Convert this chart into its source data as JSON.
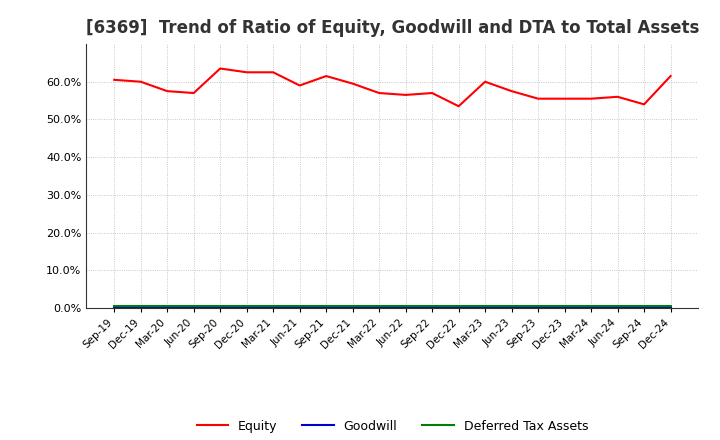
{
  "title": "[6369]  Trend of Ratio of Equity, Goodwill and DTA to Total Assets",
  "x_labels": [
    "Sep-19",
    "Dec-19",
    "Mar-20",
    "Jun-20",
    "Sep-20",
    "Dec-20",
    "Mar-21",
    "Jun-21",
    "Sep-21",
    "Dec-21",
    "Mar-22",
    "Jun-22",
    "Sep-22",
    "Dec-22",
    "Mar-23",
    "Jun-23",
    "Sep-23",
    "Dec-23",
    "Mar-24",
    "Jun-24",
    "Sep-24",
    "Dec-24"
  ],
  "equity": [
    60.5,
    60.0,
    57.5,
    57.0,
    63.5,
    62.5,
    62.5,
    59.0,
    61.5,
    59.5,
    57.0,
    56.5,
    57.0,
    53.5,
    60.0,
    57.5,
    55.5,
    55.5,
    55.5,
    56.0,
    54.0,
    61.5
  ],
  "goodwill": [
    0.0,
    0.0,
    0.0,
    0.0,
    0.0,
    0.0,
    0.0,
    0.0,
    0.0,
    0.0,
    0.0,
    0.0,
    0.0,
    0.0,
    0.0,
    0.0,
    0.0,
    0.0,
    0.0,
    0.0,
    0.0,
    0.0
  ],
  "dta": [
    0.5,
    0.5,
    0.5,
    0.5,
    0.5,
    0.5,
    0.5,
    0.5,
    0.5,
    0.5,
    0.5,
    0.5,
    0.5,
    0.5,
    0.5,
    0.5,
    0.5,
    0.5,
    0.5,
    0.5,
    0.5,
    0.5
  ],
  "equity_color": "#FF0000",
  "goodwill_color": "#0000CC",
  "dta_color": "#008000",
  "ylim": [
    0,
    70
  ],
  "yticks": [
    0,
    10,
    20,
    30,
    40,
    50,
    60
  ],
  "background_color": "#FFFFFF",
  "plot_bg_color": "#FFFFFF",
  "grid_color": "#999999",
  "title_fontsize": 12,
  "legend_labels": [
    "Equity",
    "Goodwill",
    "Deferred Tax Assets"
  ]
}
